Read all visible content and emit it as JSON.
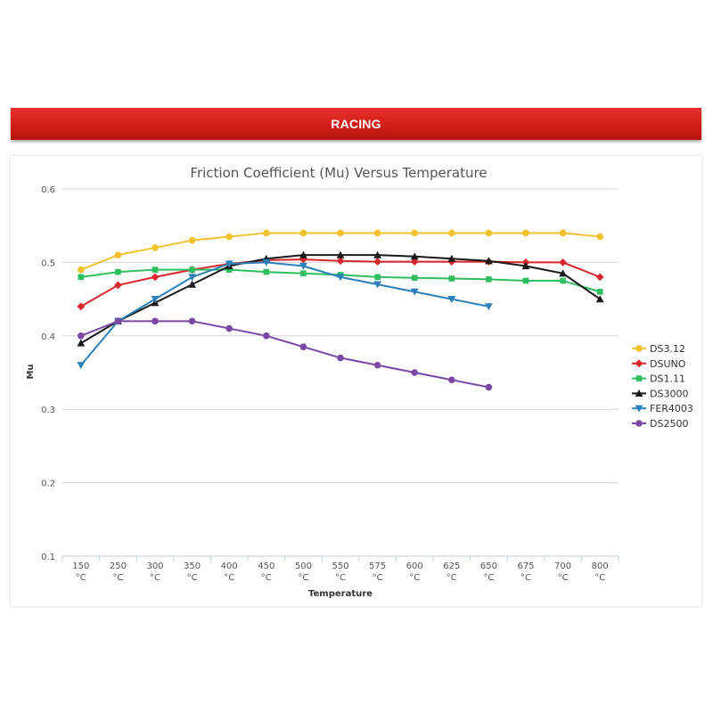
{
  "banner": {
    "title": "RACING"
  },
  "chart_data": {
    "type": "line",
    "title": "Friction Coefficient (Mu) Versus Temperature",
    "xlabel": "Temperature",
    "ylabel": "Mu",
    "categories": [
      "150",
      "250",
      "300",
      "350",
      "400",
      "450",
      "500",
      "550",
      "575",
      "600",
      "625",
      "650",
      "675",
      "700",
      "800"
    ],
    "x_unit": "°C",
    "yticks": [
      "0.1",
      "0.2",
      "0.3",
      "0.4",
      "0.5",
      "0.6"
    ],
    "ylim": [
      0.1,
      0.6
    ],
    "grid": true,
    "legend_position": "right",
    "series": [
      {
        "name": "DS3.12",
        "color": "#f2c12e",
        "marker": "circle",
        "values": [
          0.49,
          0.51,
          0.52,
          0.53,
          0.535,
          0.54,
          0.54,
          0.54,
          0.54,
          0.54,
          0.54,
          0.54,
          0.54,
          0.54,
          0.535
        ]
      },
      {
        "name": "DSUNO",
        "color": "#d9262c",
        "marker": "diamond",
        "values": [
          0.44,
          0.469,
          0.48,
          0.49,
          0.498,
          0.503,
          0.504,
          0.502,
          0.501,
          0.501,
          0.501,
          0.501,
          0.5,
          0.5,
          0.48
        ]
      },
      {
        "name": "DS1.11",
        "color": "#2ebd5f",
        "marker": "square",
        "values": [
          0.48,
          0.487,
          0.49,
          0.49,
          0.49,
          0.487,
          0.485,
          0.483,
          0.48,
          0.479,
          0.478,
          0.477,
          0.475,
          0.475,
          0.46
        ]
      },
      {
        "name": "DS3000",
        "color": "#1a1a1a",
        "marker": "triangle",
        "values": [
          0.39,
          0.42,
          0.445,
          0.47,
          0.495,
          0.505,
          0.51,
          0.51,
          0.51,
          0.508,
          0.505,
          0.502,
          0.495,
          0.485,
          0.45
        ]
      },
      {
        "name": "FER4003",
        "color": "#2d80b8",
        "marker": "triangle-down",
        "values": [
          0.36,
          0.42,
          0.45,
          0.48,
          0.498,
          0.5,
          0.495,
          0.48,
          0.47,
          0.46,
          0.45,
          0.44,
          null,
          null,
          null
        ]
      },
      {
        "name": "DS2500",
        "color": "#7b48a6",
        "marker": "circle",
        "values": [
          0.4,
          0.42,
          0.42,
          0.42,
          0.41,
          0.4,
          0.385,
          0.37,
          0.36,
          0.35,
          0.34,
          0.33,
          null,
          null,
          null
        ]
      }
    ]
  }
}
